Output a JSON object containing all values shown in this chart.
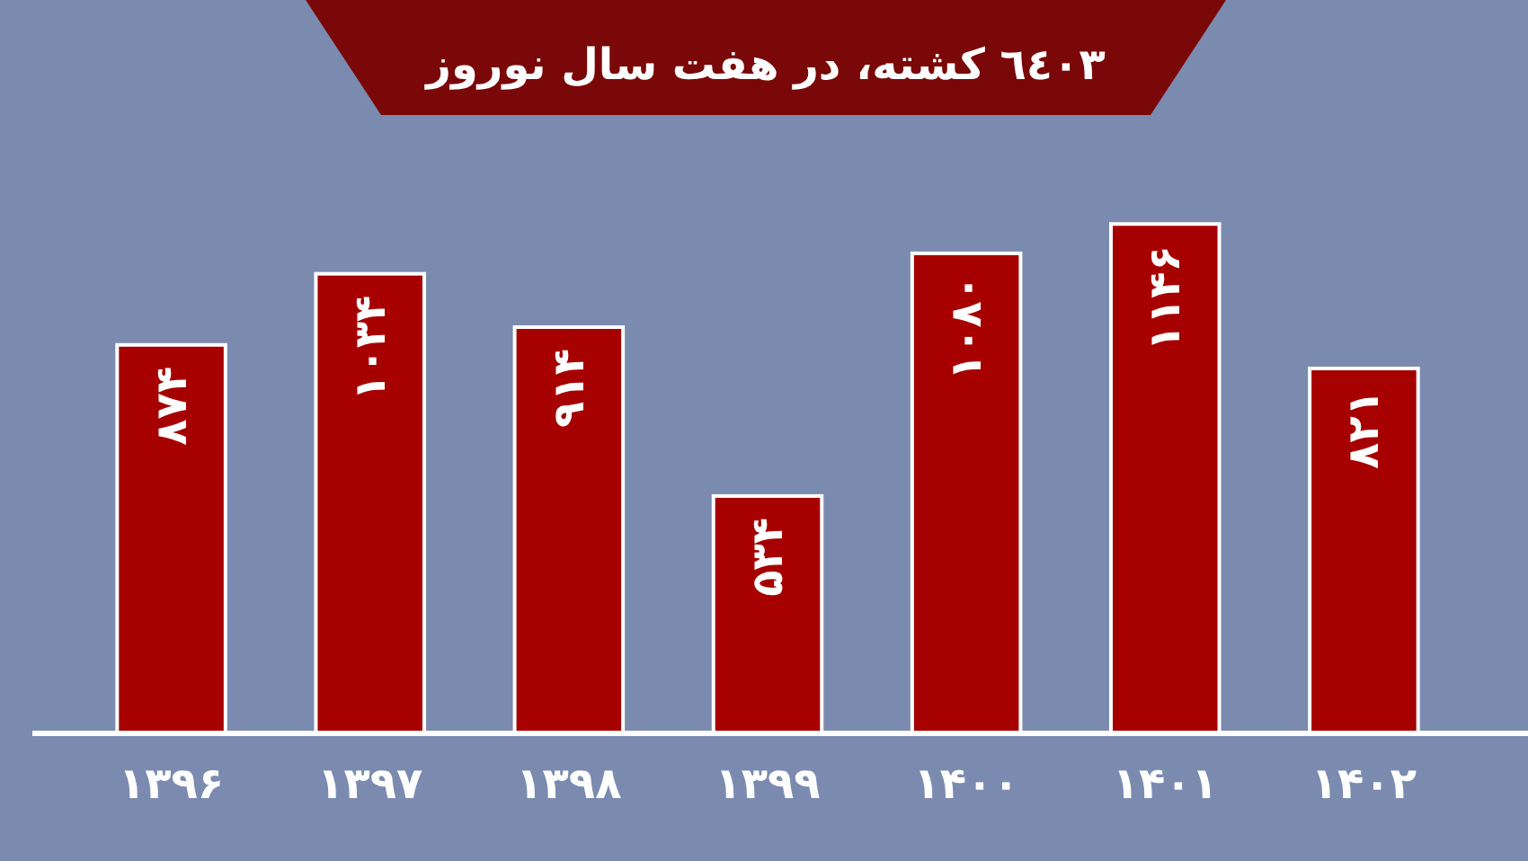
{
  "chart_data": {
    "type": "bar",
    "title": "٦٤٠٣ کشته، در هفت سال نوروز",
    "categories": [
      "۱۳۹۶",
      "۱۳۹۷",
      "۱۳۹۸",
      "۱۳۹۹",
      "۱۴۰۰",
      "۱۴۰۱",
      "۱۴۰۲"
    ],
    "values": [
      874,
      1034,
      914,
      534,
      1080,
      1146,
      821
    ],
    "value_labels": [
      "۸۷۴",
      "۱۰۳۴",
      "۹۱۴",
      "۵۳۴",
      "۱۰۸۰",
      "۱۱۴۶",
      "۸۲۱"
    ],
    "color": "#a60000",
    "ylim": [
      0,
      1650
    ],
    "grid": false
  }
}
